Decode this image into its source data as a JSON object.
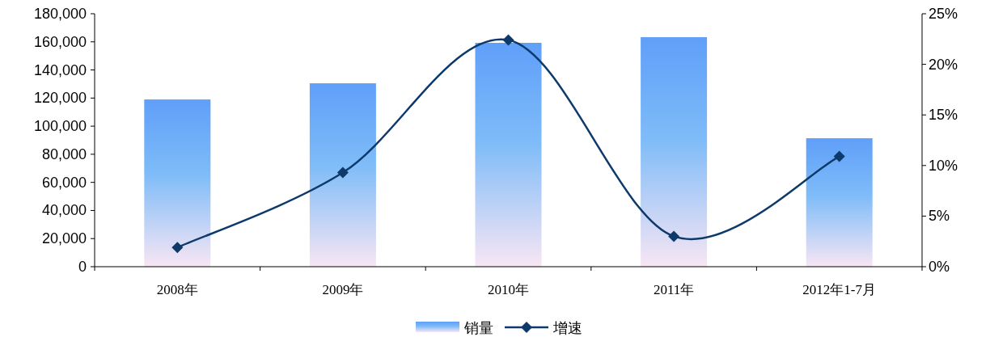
{
  "chart_data": {
    "type": "bar",
    "categories": [
      "2008年",
      "2009年",
      "2010年",
      "2011年",
      "2012年1-7月"
    ],
    "series": [
      {
        "name": "销量",
        "color": "#5f9ff8",
        "values": [
          119000,
          130500,
          159300,
          163300,
          91400
        ]
      },
      {
        "name": "增速",
        "type": "line",
        "axis": "y2",
        "color": "#0d3a6b",
        "values": [
          1.9,
          9.3,
          22.4,
          3.0,
          10.9
        ]
      }
    ],
    "ylim": [
      0,
      180000
    ],
    "yticks": [
      {
        "value": 0,
        "label": "0"
      },
      {
        "value": 20000,
        "label": "20,000"
      },
      {
        "value": 40000,
        "label": "40,000"
      },
      {
        "value": 60000,
        "label": "60,000"
      },
      {
        "value": 80000,
        "label": "80,000"
      },
      {
        "value": 100000,
        "label": "100,000"
      },
      {
        "value": 120000,
        "label": "120,000"
      },
      {
        "value": 140000,
        "label": "140,000"
      },
      {
        "value": 160000,
        "label": "160,000"
      },
      {
        "value": 180000,
        "label": "180,000"
      }
    ],
    "y2lim": [
      0,
      25
    ],
    "y2ticks": [
      {
        "value": 0,
        "label": "0%"
      },
      {
        "value": 5,
        "label": "5%"
      },
      {
        "value": 10,
        "label": "10%"
      },
      {
        "value": 15,
        "label": "15%"
      },
      {
        "value": 20,
        "label": "20%"
      },
      {
        "value": 25,
        "label": "25%"
      }
    ],
    "legend": "bottom",
    "marker": "diamond",
    "grid": false
  }
}
